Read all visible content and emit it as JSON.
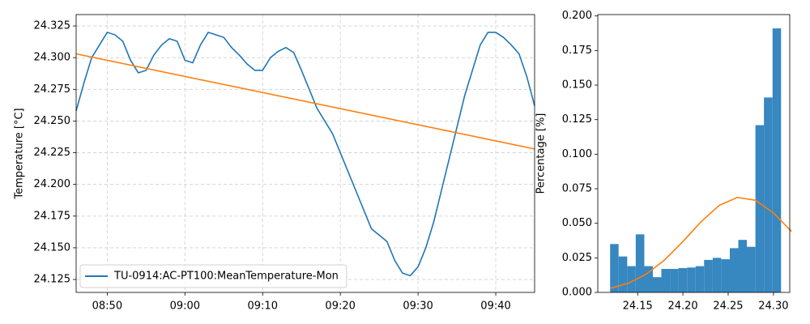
{
  "chart_data": [
    {
      "type": "line",
      "ylabel": "Temperature [°C]",
      "x": [
        "08:46",
        "08:47",
        "08:48",
        "08:49",
        "08:50",
        "08:51",
        "08:52",
        "08:53",
        "08:54",
        "08:55",
        "08:56",
        "08:57",
        "08:58",
        "08:59",
        "09:00",
        "09:01",
        "09:02",
        "09:03",
        "09:04",
        "09:05",
        "09:06",
        "09:07",
        "09:08",
        "09:09",
        "09:10",
        "09:11",
        "09:12",
        "09:13",
        "09:14",
        "09:15",
        "09:16",
        "09:17",
        "09:18",
        "09:19",
        "09:20",
        "09:21",
        "09:22",
        "09:23",
        "09:24",
        "09:25",
        "09:26",
        "09:27",
        "09:28",
        "09:29",
        "09:30",
        "09:31",
        "09:32",
        "09:33",
        "09:34",
        "09:35",
        "09:36",
        "09:37",
        "09:38",
        "09:39",
        "09:40",
        "09:41",
        "09:42",
        "09:43",
        "09:44",
        "09:45"
      ],
      "series": [
        {
          "name": "TU-0914:AC-PT100:MeanTemperature-Mon",
          "color": "#1f77b4",
          "values": [
            24.258,
            24.28,
            24.3,
            24.31,
            24.32,
            24.318,
            24.313,
            24.298,
            24.288,
            24.29,
            24.302,
            24.31,
            24.315,
            24.313,
            24.298,
            24.296,
            24.31,
            24.32,
            24.318,
            24.316,
            24.308,
            24.302,
            24.295,
            24.29,
            24.29,
            24.3,
            24.305,
            24.308,
            24.304,
            24.29,
            24.275,
            24.26,
            24.25,
            24.24,
            24.225,
            24.21,
            24.195,
            24.18,
            24.165,
            24.16,
            24.155,
            24.14,
            24.13,
            24.128,
            24.135,
            24.15,
            24.17,
            24.195,
            24.22,
            24.245,
            24.27,
            24.29,
            24.31,
            24.32,
            24.32,
            24.316,
            24.31,
            24.303,
            24.285,
            24.262
          ]
        },
        {
          "color": "#ff7f0e",
          "x": [
            "08:46",
            "09:45"
          ],
          "values": [
            24.303,
            24.228
          ]
        }
      ],
      "xlim": [
        "08:46",
        "09:45"
      ],
      "xticks": [
        "08:50",
        "09:00",
        "09:10",
        "09:20",
        "09:30",
        "09:40"
      ],
      "ylim": [
        24.1148,
        24.334
      ],
      "yticks": [
        {
          "value": 24.125,
          "label": "24.125"
        },
        {
          "value": 24.15,
          "label": "24.150"
        },
        {
          "value": 24.175,
          "label": "24.175"
        },
        {
          "value": 24.2,
          "label": "24.200"
        },
        {
          "value": 24.225,
          "label": "24.225"
        },
        {
          "value": 24.25,
          "label": "24.250"
        },
        {
          "value": 24.275,
          "label": "24.275"
        },
        {
          "value": 24.3,
          "label": "24.300"
        },
        {
          "value": 24.325,
          "label": "24.325"
        }
      ],
      "grid": true,
      "legend": "lower left"
    },
    {
      "type": "histogram",
      "ylabel": "Percentage [%]",
      "bins": [
        24.1196,
        24.129,
        24.1385,
        24.1479,
        24.1574,
        24.1668,
        24.1762,
        24.1857,
        24.1951,
        24.2046,
        24.214,
        24.2234,
        24.2329,
        24.2423,
        24.2518,
        24.2612,
        24.2706,
        24.2801,
        24.2895,
        24.299,
        24.3084
      ],
      "values": [
        0.035,
        0.026,
        0.019,
        0.042,
        0.019,
        0.011,
        0.017,
        0.017,
        0.0176,
        0.018,
        0.019,
        0.0235,
        0.025,
        0.024,
        0.032,
        0.038,
        0.033,
        0.121,
        0.141,
        0.191
      ],
      "color": "#3787c0",
      "series": [
        {
          "color": "#ff7f0e",
          "x": [
            24.12,
            24.14,
            24.16,
            24.18,
            24.2,
            24.22,
            24.24,
            24.26,
            24.28,
            24.3,
            24.32
          ],
          "values": [
            0.003,
            0.0067,
            0.0134,
            0.0236,
            0.0368,
            0.0511,
            0.0629,
            0.0687,
            0.0667,
            0.0575,
            0.0441
          ]
        }
      ],
      "xlim": [
        24.106,
        24.318
      ],
      "xticks": [
        24.15,
        {
          "value": 24.2,
          "label": "24.20"
        },
        24.25,
        {
          "value": 24.3,
          "label": "24.30"
        }
      ],
      "ylim": [
        0,
        0.201
      ],
      "yticks": [
        {
          "value": 0,
          "label": "0.000"
        },
        0.025,
        {
          "value": 0.05,
          "label": "0.050"
        },
        0.075,
        {
          "value": 0.1,
          "label": "0.100"
        },
        0.125,
        {
          "value": 0.15,
          "label": "0.150"
        },
        0.175,
        {
          "value": 0.2,
          "label": "0.200"
        }
      ],
      "grid": false
    }
  ]
}
